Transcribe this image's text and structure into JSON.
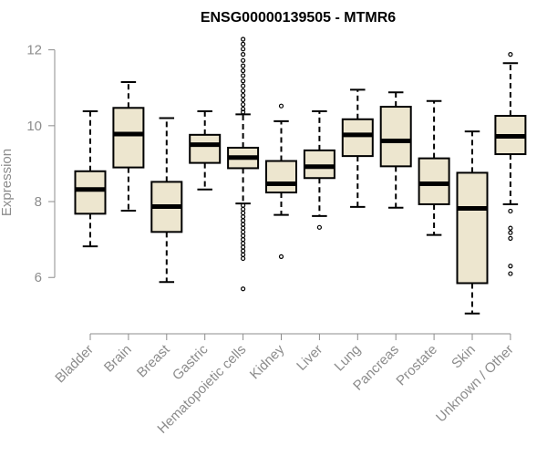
{
  "chart_data": {
    "type": "box",
    "title": "ENSG00000139505 - MTMR6",
    "xlabel": "",
    "ylabel": "Expression",
    "ylim": [
      4.9,
      12.4
    ],
    "yticks": [
      6,
      8,
      10,
      12
    ],
    "grid": false,
    "box_fill": "#ede6cf",
    "box_stroke": "#000000",
    "categories": [
      "Bladder",
      "Brain",
      "Breast",
      "Gastric",
      "Hematopoietic cells",
      "Kidney",
      "Liver",
      "Lung",
      "Pancreas",
      "Prostate",
      "Skin",
      "Unknown / Other"
    ],
    "boxes": [
      {
        "name": "Bladder",
        "whisker_low": 6.82,
        "q1": 7.68,
        "median": 8.32,
        "q3": 8.8,
        "whisker_high": 10.38,
        "outliers": []
      },
      {
        "name": "Brain",
        "whisker_low": 7.76,
        "q1": 8.9,
        "median": 9.78,
        "q3": 10.47,
        "whisker_high": 11.15,
        "outliers": []
      },
      {
        "name": "Breast",
        "whisker_low": 5.88,
        "q1": 7.2,
        "median": 7.87,
        "q3": 8.52,
        "whisker_high": 10.2,
        "outliers": []
      },
      {
        "name": "Gastric",
        "whisker_low": 8.32,
        "q1": 9.02,
        "median": 9.5,
        "q3": 9.76,
        "whisker_high": 10.38,
        "outliers": []
      },
      {
        "name": "Hematopoietic cells",
        "whisker_low": 7.95,
        "q1": 8.88,
        "median": 9.16,
        "q3": 9.42,
        "whisker_high": 10.3,
        "outliers": [
          12.28,
          12.15,
          12.02,
          11.88,
          11.72,
          11.58,
          11.45,
          11.32,
          11.18,
          11.05,
          10.92,
          10.8,
          10.68,
          10.56,
          10.44,
          10.36,
          7.9,
          7.8,
          7.7,
          7.6,
          7.5,
          7.4,
          7.3,
          7.2,
          7.1,
          7.0,
          6.9,
          6.8,
          6.7,
          6.6,
          6.5,
          5.7
        ]
      },
      {
        "name": "Kidney",
        "whisker_low": 7.65,
        "q1": 8.24,
        "median": 8.47,
        "q3": 9.07,
        "whisker_high": 10.12,
        "outliers": [
          10.52,
          6.55
        ]
      },
      {
        "name": "Liver",
        "whisker_low": 7.62,
        "q1": 8.62,
        "median": 8.92,
        "q3": 9.35,
        "whisker_high": 10.38,
        "outliers": [
          7.32
        ]
      },
      {
        "name": "Lung",
        "whisker_low": 7.86,
        "q1": 9.2,
        "median": 9.76,
        "q3": 10.17,
        "whisker_high": 10.95,
        "outliers": []
      },
      {
        "name": "Pancreas",
        "whisker_low": 7.84,
        "q1": 8.93,
        "median": 9.6,
        "q3": 10.5,
        "whisker_high": 10.88,
        "outliers": []
      },
      {
        "name": "Prostate",
        "whisker_low": 7.12,
        "q1": 7.93,
        "median": 8.47,
        "q3": 9.14,
        "whisker_high": 10.65,
        "outliers": []
      },
      {
        "name": "Skin",
        "whisker_low": 5.05,
        "q1": 5.85,
        "median": 7.82,
        "q3": 8.76,
        "whisker_high": 9.85,
        "outliers": []
      },
      {
        "name": "Unknown / Other",
        "whisker_low": 7.93,
        "q1": 9.25,
        "median": 9.72,
        "q3": 10.26,
        "whisker_high": 11.65,
        "outliers": [
          11.88,
          7.75,
          7.3,
          7.18,
          7.03,
          6.3,
          6.1
        ]
      }
    ]
  }
}
